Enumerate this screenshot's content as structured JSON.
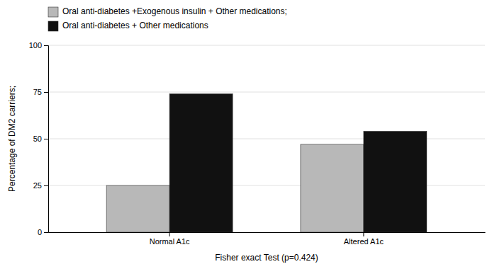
{
  "chart_data": {
    "type": "bar",
    "categories": [
      "Normal A1c",
      "Altered A1c"
    ],
    "series": [
      {
        "name": "Oral anti-diabetes +Exogenous insulin + Other medications;",
        "color": "#b8b8b8",
        "values": [
          25,
          47
        ]
      },
      {
        "name": "Oral anti-diabetes + Other medications",
        "color": "#111111",
        "values": [
          74,
          54
        ]
      }
    ],
    "ylabel": "Percentage of DM2 carriers;",
    "xlabel": "Fisher exact Test (p=0.424)",
    "ylim": [
      0,
      100
    ],
    "yticks": [
      0,
      25,
      50,
      75,
      100
    ],
    "grid": true,
    "legend": "upper left"
  }
}
